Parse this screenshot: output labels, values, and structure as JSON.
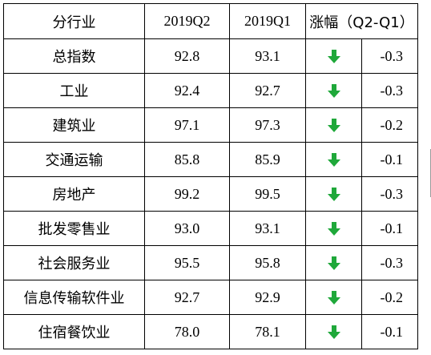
{
  "header": {
    "industry": "分行业",
    "q2": "2019Q2",
    "q1": "2019Q1",
    "change": "涨幅（Q2-Q1）"
  },
  "icon": "arrow-down-icon",
  "arrow_color": "#1fa83a",
  "rows": [
    {
      "industry": "总指数",
      "q2": "92.8",
      "q1": "93.1",
      "change": "-0.3"
    },
    {
      "industry": "工业",
      "q2": "92.4",
      "q1": "92.7",
      "change": "-0.3"
    },
    {
      "industry": "建筑业",
      "q2": "97.1",
      "q1": "97.3",
      "change": "-0.2"
    },
    {
      "industry": "交通运输",
      "q2": "85.8",
      "q1": "85.9",
      "change": "-0.1"
    },
    {
      "industry": "房地产",
      "q2": "99.2",
      "q1": "99.5",
      "change": "-0.3"
    },
    {
      "industry": "批发零售业",
      "q2": "93.0",
      "q1": "93.1",
      "change": "-0.1"
    },
    {
      "industry": "社会服务业",
      "q2": "95.5",
      "q1": "95.8",
      "change": "-0.3"
    },
    {
      "industry": "信息传输软件业",
      "q2": "92.7",
      "q1": "92.9",
      "change": "-0.2"
    },
    {
      "industry": "住宿餐饮业",
      "q2": "78.0",
      "q1": "78.1",
      "change": "-0.1"
    }
  ]
}
